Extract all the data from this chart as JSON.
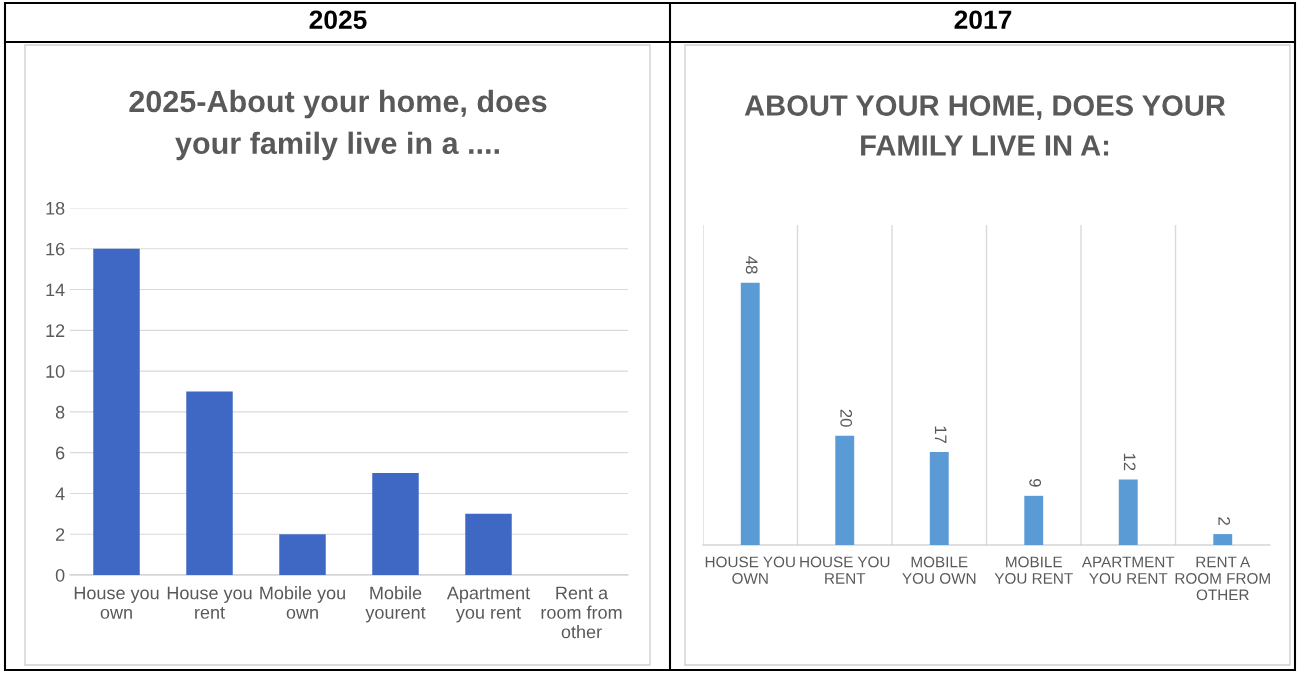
{
  "chart_data": [
    {
      "type": "bar",
      "subtitle": "2025",
      "title": "2025-About your home, does your family live in a ....",
      "categories": [
        "House you own",
        "House you rent",
        "Mobile you own",
        "Mobile yourent",
        "Apartment you rent",
        "Rent a room from other"
      ],
      "values": [
        16,
        9,
        2,
        5,
        3,
        0
      ],
      "color": "#3f68c4",
      "ylim": [
        0,
        18
      ],
      "yticks": [
        0,
        2,
        4,
        6,
        8,
        10,
        12,
        14,
        16,
        18
      ],
      "grid": "y"
    },
    {
      "type": "bar",
      "subtitle": "2017",
      "title": "ABOUT YOUR HOME, DOES YOUR FAMILY LIVE IN A:",
      "categories": [
        "HOUSE YOU OWN",
        "HOUSE YOU RENT",
        "MOBILE YOU OWN",
        "MOBILE YOU RENT",
        "APARTMENT YOU RENT",
        "RENT A ROOM FROM OTHER"
      ],
      "values": [
        48,
        20,
        17,
        9,
        12,
        2
      ],
      "color": "#5b9bd5",
      "data_labels": true,
      "grid": "x"
    }
  ]
}
